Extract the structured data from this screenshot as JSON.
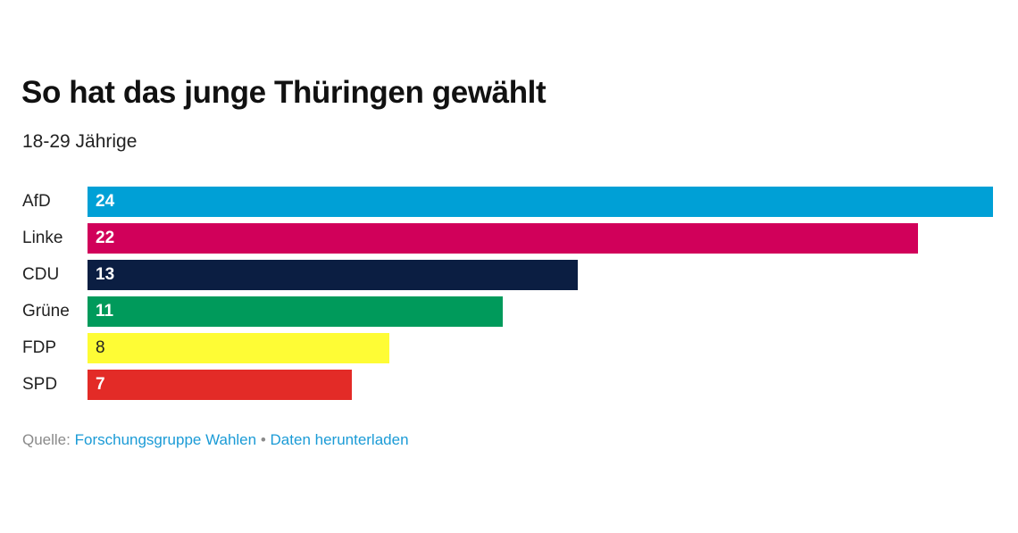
{
  "chart_data": {
    "type": "bar",
    "orientation": "horizontal",
    "title": "So hat das junge Thüringen gewählt",
    "subtitle": "18-29 Jährige",
    "categories": [
      "AfD",
      "Linke",
      "CDU",
      "Grüne",
      "FDP",
      "SPD"
    ],
    "values": [
      24,
      22,
      13,
      11,
      8,
      7
    ],
    "value_labels": [
      "24",
      "22",
      "13",
      "11",
      "8",
      "7"
    ],
    "colors": [
      "#00a0d6",
      "#d1005a",
      "#0b1e42",
      "#009a5b",
      "#fefc35",
      "#e32b27"
    ],
    "label_colors": [
      "#ffffff",
      "#ffffff",
      "#ffffff",
      "#ffffff",
      "#222222",
      "#ffffff"
    ],
    "xlim": [
      0,
      24
    ],
    "grid": false,
    "legend": "none"
  },
  "source": {
    "prefix": "Quelle:",
    "source_link": "Forschungsgruppe Wahlen",
    "separator": "•",
    "download_link": "Daten herunterladen"
  }
}
